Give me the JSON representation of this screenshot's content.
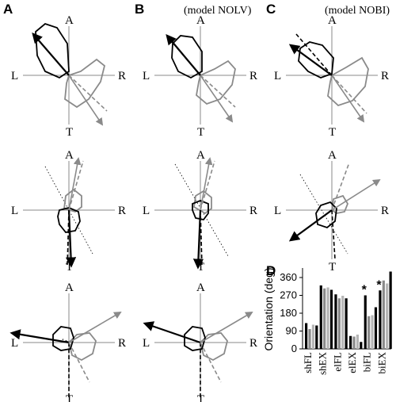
{
  "panel_labels": {
    "a": "A",
    "b": "B",
    "c": "C",
    "d": "D"
  },
  "model_notes": {
    "b": "(model NOLV)",
    "c": "(model NOBI)"
  },
  "axis_labels": {
    "top": "A",
    "bottom": "T",
    "left": "L",
    "right": "R"
  },
  "colors": {
    "black": "#000000",
    "gray": "#8a8a8a",
    "light_gray": "#b5b5b5"
  },
  "chart_data": {
    "type": "bar",
    "ylabel": "Orientation (deg)",
    "yticks": [
      "0",
      "90",
      "180",
      "270",
      "360"
    ],
    "ylim": [
      0,
      400
    ],
    "categories": [
      "shFL",
      "shEX",
      "elFL",
      "elEX",
      "biFL",
      "biEX"
    ],
    "series": [
      {
        "values": [
          130,
          320,
          275,
          65,
          270,
          295
        ]
      },
      {
        "values": [
          100,
          305,
          255,
          62,
          165,
          345
        ]
      },
      {
        "values": [
          122,
          310,
          268,
          72,
          170,
          330
        ]
      },
      {
        "values": [
          118,
          298,
          255,
          35,
          210,
          390
        ]
      }
    ],
    "annotations": [
      "*",
      "*"
    ]
  }
}
